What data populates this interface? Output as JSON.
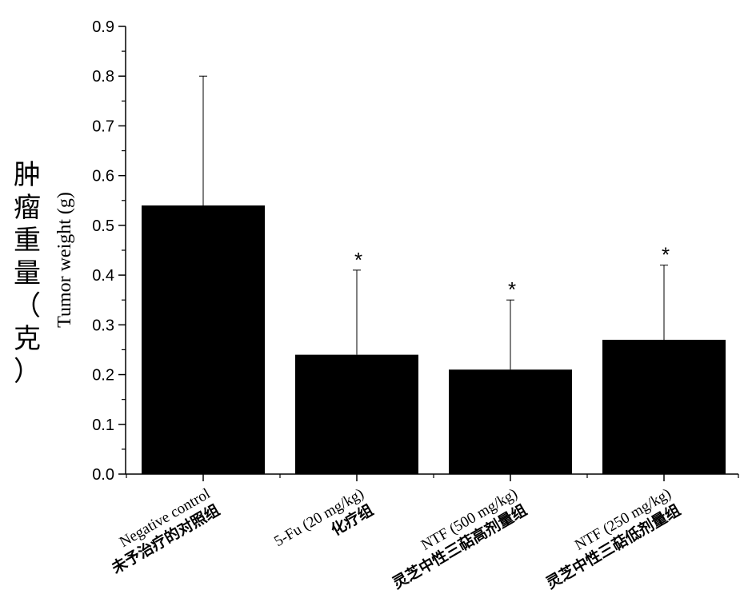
{
  "chart_data": {
    "type": "bar",
    "categories": [
      {
        "en": "Negative control",
        "zh": "未予治疗的对照组"
      },
      {
        "en": "5-Fu (20 mg/kg)",
        "zh": "化疗组"
      },
      {
        "en": "NTF (500 mg/kg)",
        "zh": "灵芝中性三萜高剂量组"
      },
      {
        "en": "NTF (250 mg/kg)",
        "zh": "灵芝中性三萜低剂量组"
      }
    ],
    "values": [
      0.54,
      0.24,
      0.21,
      0.27
    ],
    "errors": [
      0.26,
      0.17,
      0.14,
      0.15
    ],
    "significance": [
      "",
      "*",
      "*",
      "*"
    ],
    "ylabel": "Tumor weight (g)",
    "ylabel_zh": "肿瘤重量（克）",
    "ylim": [
      0,
      0.9
    ],
    "yticks": [
      "0.0",
      "0.1",
      "0.2",
      "0.3",
      "0.4",
      "0.5",
      "0.6",
      "0.7",
      "0.8",
      "0.9"
    ],
    "bar_color": "#000000",
    "grid": false
  }
}
